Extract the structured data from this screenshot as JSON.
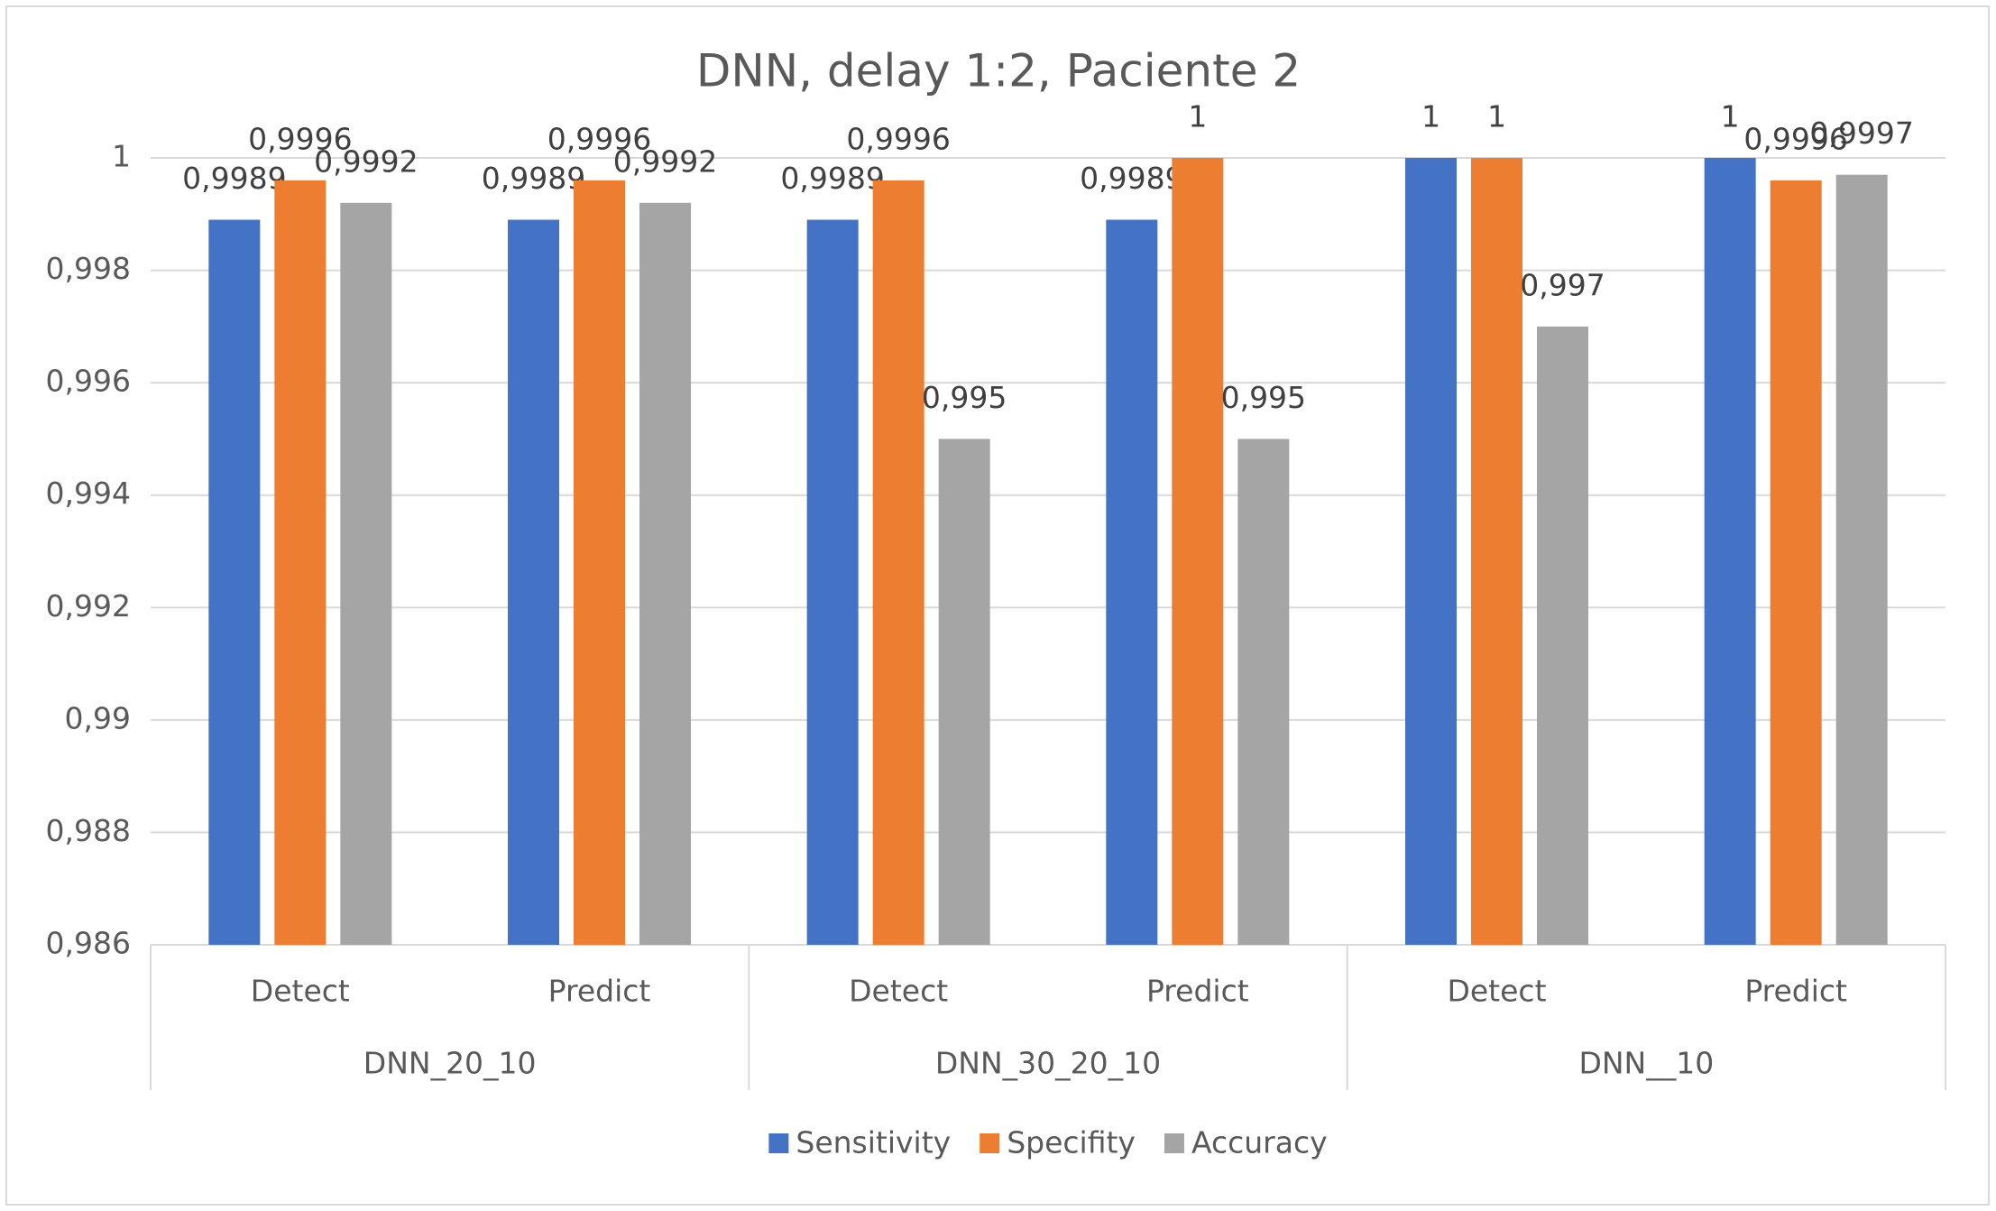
{
  "chart_data": {
    "type": "bar",
    "title": "DNN, delay 1:2, Paciente 2",
    "categories": [
      "Detect",
      "Predict",
      "Detect",
      "Predict",
      "Detect",
      "Predict"
    ],
    "groups": [
      "DNN_20_10",
      "DNN_30_20_10",
      "DNN__10"
    ],
    "series": [
      {
        "name": "Sensitivity",
        "color": "#4472c4",
        "values": [
          0.9989,
          0.9989,
          0.9989,
          0.9989,
          1,
          1
        ],
        "value_labels": [
          "0,9989",
          "0,9989",
          "0,9989",
          "0,9989",
          "1",
          "1"
        ]
      },
      {
        "name": "Specifity",
        "color": "#ed7d31",
        "values": [
          0.9996,
          0.9996,
          0.9996,
          1,
          1,
          0.9996
        ],
        "value_labels": [
          "0,9996",
          "0,9996",
          "0,9996",
          "1",
          "1",
          "0,9996"
        ]
      },
      {
        "name": "Accuracy",
        "color": "#a5a5a5",
        "values": [
          0.9992,
          0.9992,
          0.995,
          0.995,
          0.997,
          0.9997
        ],
        "value_labels": [
          "0,9992",
          "0,9992",
          "0,995",
          "0,995",
          "0,997",
          "0,9997"
        ]
      }
    ],
    "ylim": [
      0.986,
      1
    ],
    "yticks": [
      {
        "value": 0.986,
        "label": "0,986"
      },
      {
        "value": 0.988,
        "label": "0,988"
      },
      {
        "value": 0.99,
        "label": "0,99"
      },
      {
        "value": 0.992,
        "label": "0,992"
      },
      {
        "value": 0.994,
        "label": "0,994"
      },
      {
        "value": 0.996,
        "label": "0,996"
      },
      {
        "value": 0.998,
        "label": "0,998"
      },
      1
    ],
    "grid": true,
    "legend": "bottom"
  }
}
